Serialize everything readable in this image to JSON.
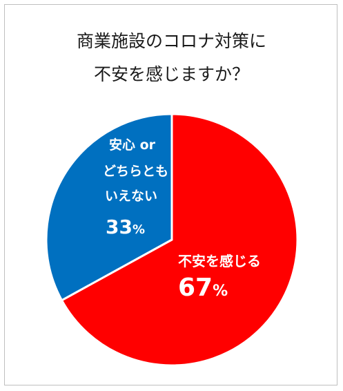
{
  "chart_data": {
    "type": "pie",
    "title_line1": "商業施設のコロナ対策に",
    "title_line2": "不安を感じますか？",
    "slices": [
      {
        "label_lines": [
          "不安を感じる"
        ],
        "value": 67,
        "value_label": "67",
        "unit": "%",
        "color": "#ff0000"
      },
      {
        "label_lines": [
          "安心 or",
          "どちらとも",
          "いえない"
        ],
        "value": 33,
        "value_label": "33",
        "unit": "%",
        "color": "#0070c0"
      }
    ],
    "start_angle_deg": 0,
    "direction": "clockwise"
  }
}
